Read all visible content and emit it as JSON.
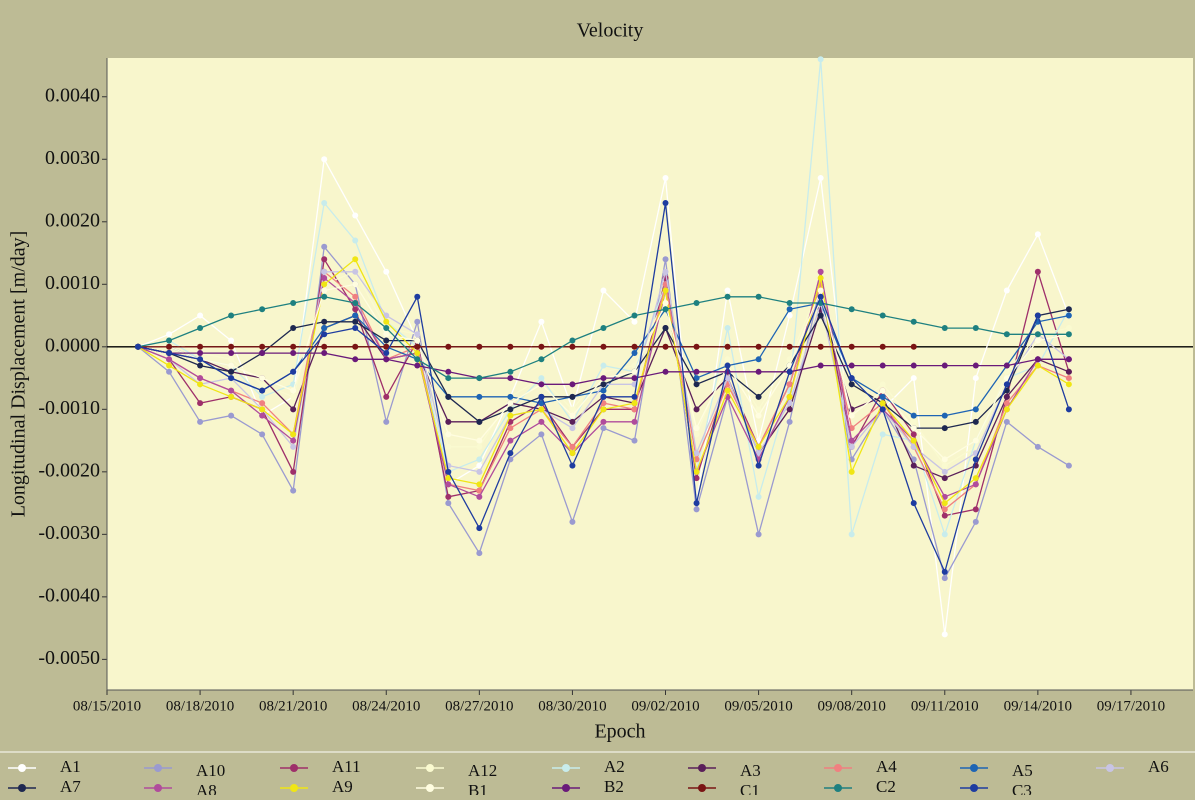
{
  "chart_data": {
    "type": "line",
    "title": "Velocity",
    "xlabel": "Epoch",
    "ylabel": "Longitudinal Displacement [m/day]",
    "x": [
      "08/16/2010",
      "08/17/2010",
      "08/18/2010",
      "08/19/2010",
      "08/20/2010",
      "08/21/2010",
      "08/22/2010",
      "08/23/2010",
      "08/24/2010",
      "08/25/2010",
      "08/26/2010",
      "08/27/2010",
      "08/28/2010",
      "08/29/2010",
      "08/30/2010",
      "08/31/2010",
      "09/01/2010",
      "09/02/2010",
      "09/03/2010",
      "09/04/2010",
      "09/05/2010",
      "09/06/2010",
      "09/07/2010",
      "09/08/2010",
      "09/09/2010",
      "09/10/2010",
      "09/11/2010",
      "09/12/2010",
      "09/13/2010",
      "09/14/2010",
      "09/15/2010"
    ],
    "xlim": [
      "08/15/2010",
      "09/19/2010"
    ],
    "xticks": [
      "08/15/2010",
      "08/18/2010",
      "08/21/2010",
      "08/24/2010",
      "08/27/2010",
      "08/30/2010",
      "09/02/2010",
      "09/05/2010",
      "09/08/2010",
      "09/11/2010",
      "09/14/2010",
      "09/17/2010"
    ],
    "ylim": [
      -0.00549,
      0.00462
    ],
    "yticks": [
      {
        "value": -0.005,
        "label": "-0.0050"
      },
      {
        "value": -0.004,
        "label": "-0.0040"
      },
      {
        "value": -0.003,
        "label": "-0.0030"
      },
      {
        "value": -0.002,
        "label": "-0.0020"
      },
      {
        "value": -0.001,
        "label": "-0.0010"
      },
      {
        "value": 0,
        "label": "0.0000"
      },
      {
        "value": 0.001,
        "label": "0.0010"
      },
      {
        "value": 0.002,
        "label": "0.0020"
      },
      {
        "value": 0.003,
        "label": "0.0030"
      },
      {
        "value": 0.004,
        "label": "0.0040"
      }
    ],
    "zero_line": true,
    "series": [
      {
        "name": "A1",
        "color": "#ffffff",
        "values": [
          0,
          0.0002,
          0.0005,
          0.0001,
          -0.0011,
          -0.0008,
          0.003,
          0.0021,
          0.0012,
          0.0001,
          -0.0022,
          -0.0019,
          -0.0008,
          0.0004,
          -0.001,
          0.0009,
          0.0004,
          0.0027,
          -0.0025,
          0.0009,
          -0.0015,
          0.0005,
          0.0027,
          -0.0016,
          -0.001,
          -0.0005,
          -0.0046,
          -0.0005,
          0.0009,
          0.0018,
          0.0005
        ]
      },
      {
        "name": "A10",
        "color": "#9a9ad0",
        "values": [
          0,
          -0.0004,
          -0.0012,
          -0.0011,
          -0.0014,
          -0.0023,
          0.0016,
          0.001,
          -0.0012,
          0.0004,
          -0.0025,
          -0.0033,
          -0.0018,
          -0.0014,
          -0.0028,
          -0.0013,
          -0.0015,
          0.0014,
          -0.0026,
          -0.0008,
          -0.003,
          -0.0012,
          0.001,
          -0.0018,
          -0.001,
          -0.0018,
          -0.0037,
          -0.0028,
          -0.0012,
          -0.0016,
          -0.0019
        ]
      },
      {
        "name": "A11",
        "color": "#9e2f6a",
        "values": [
          0,
          -0.0002,
          -0.0009,
          -0.0008,
          -0.001,
          -0.002,
          0.0014,
          0.0006,
          -0.0008,
          0.0001,
          -0.0024,
          -0.0023,
          -0.0012,
          -0.0009,
          -0.0016,
          -0.001,
          -0.001,
          0.0011,
          -0.0021,
          -0.0005,
          -0.0016,
          -0.0006,
          0.001,
          -0.0016,
          -0.0007,
          -0.0014,
          -0.0027,
          -0.0026,
          -0.0008,
          0.0012,
          -0.0004
        ]
      },
      {
        "name": "A12",
        "color": "#fafad0",
        "values": [
          0,
          0.0001,
          -0.0001,
          -0.0002,
          -0.0006,
          -0.0008,
          0.001,
          0.0012,
          0.0003,
          0.0002,
          -0.0016,
          -0.0016,
          -0.0008,
          -0.0005,
          -0.001,
          -0.0004,
          -0.0003,
          0.0008,
          -0.0014,
          -0.0002,
          -0.001,
          -0.0002,
          0.001,
          -0.001,
          -0.0006,
          -0.0012,
          -0.0019,
          -0.0016,
          -0.0004,
          0.0002,
          0.0003
        ]
      },
      {
        "name": "A2",
        "color": "#c8ecec",
        "values": [
          0,
          0.0001,
          -0.0002,
          -0.0003,
          -0.0008,
          -0.0006,
          0.0023,
          0.0017,
          0.0004,
          0.0,
          -0.002,
          -0.0018,
          -0.001,
          -0.0005,
          -0.0012,
          -0.0003,
          -0.0004,
          0.001,
          -0.002,
          0.0003,
          -0.0024,
          -0.0007,
          0.0046,
          -0.003,
          -0.0014,
          -0.0015,
          -0.003,
          -0.0015,
          -0.0005,
          -0.0003,
          0.0006
        ]
      },
      {
        "name": "A3",
        "color": "#5a1f5a",
        "values": [
          0,
          -0.0001,
          -0.0002,
          -0.0004,
          -0.0005,
          -0.001,
          0.0003,
          0.0005,
          -0.0002,
          -0.0001,
          -0.0012,
          -0.0012,
          -0.0009,
          -0.001,
          -0.0012,
          -0.0008,
          -0.0009,
          0.0003,
          -0.001,
          -0.0005,
          -0.0017,
          -0.001,
          0.0006,
          -0.001,
          -0.0008,
          -0.0019,
          -0.0021,
          -0.0019,
          -0.0008,
          -0.0002,
          -0.0004
        ]
      },
      {
        "name": "A4",
        "color": "#f08080",
        "values": [
          0,
          -0.0002,
          -0.0005,
          -0.0007,
          -0.0009,
          -0.0014,
          0.0012,
          0.0008,
          -0.0002,
          0.0,
          -0.0022,
          -0.0023,
          -0.0013,
          -0.001,
          -0.0016,
          -0.0009,
          -0.001,
          0.001,
          -0.0018,
          -0.0006,
          -0.0016,
          -0.0006,
          0.001,
          -0.0013,
          -0.0009,
          -0.0016,
          -0.0026,
          -0.0022,
          -0.0009,
          -0.0003,
          -0.0005
        ]
      },
      {
        "name": "A5",
        "color": "#1e64b4",
        "values": [
          0,
          0.0,
          -0.0002,
          -0.0005,
          -0.0007,
          -0.0004,
          0.0003,
          0.0005,
          0.0,
          -0.0002,
          -0.0008,
          -0.0008,
          -0.0008,
          -0.0009,
          -0.0008,
          -0.0007,
          -0.0001,
          0.0006,
          -0.0005,
          -0.0003,
          -0.0002,
          0.0006,
          0.0007,
          -0.0005,
          -0.0008,
          -0.0011,
          -0.0011,
          -0.001,
          -0.0003,
          0.0004,
          0.0005
        ]
      },
      {
        "name": "A6",
        "color": "#c8c4e4",
        "values": [
          0,
          -0.0002,
          -0.0006,
          -0.0005,
          -0.001,
          -0.0016,
          0.0012,
          0.0012,
          0.0005,
          0.0002,
          -0.0019,
          -0.002,
          -0.0011,
          -0.001,
          -0.0013,
          -0.0006,
          -0.0006,
          0.0012,
          -0.0017,
          -0.0005,
          -0.0017,
          -0.0009,
          0.0007,
          -0.0016,
          -0.001,
          -0.0016,
          -0.002,
          -0.0017,
          -0.0006,
          0.0002,
          -0.0002
        ]
      },
      {
        "name": "A7",
        "color": "#1e2850",
        "values": [
          0,
          -0.0001,
          -0.0003,
          -0.0004,
          -0.0001,
          0.0003,
          0.0004,
          0.0004,
          0.0001,
          0.0001,
          -0.0008,
          -0.0012,
          -0.001,
          -0.0008,
          -0.0008,
          -0.0006,
          -0.0004,
          0.0003,
          -0.0006,
          -0.0004,
          -0.0008,
          -0.0003,
          0.0005,
          -0.0006,
          -0.0009,
          -0.0013,
          -0.0013,
          -0.0012,
          -0.0007,
          0.0005,
          0.0006
        ]
      },
      {
        "name": "A8",
        "color": "#b04c9c",
        "values": [
          0,
          -0.0002,
          -0.0005,
          -0.0007,
          -0.0011,
          -0.0015,
          0.0011,
          0.0007,
          -0.0002,
          -0.0001,
          -0.0022,
          -0.0024,
          -0.0015,
          -0.0012,
          -0.0017,
          -0.0012,
          -0.0012,
          0.0009,
          -0.002,
          -0.0008,
          -0.0018,
          -0.0008,
          0.0012,
          -0.0015,
          -0.001,
          -0.0015,
          -0.0024,
          -0.0022,
          -0.001,
          -0.0002,
          -0.0002
        ]
      },
      {
        "name": "A9",
        "color": "#f0e614",
        "values": [
          0,
          -0.0003,
          -0.0006,
          -0.0008,
          -0.001,
          -0.0014,
          0.001,
          0.0014,
          0.0004,
          -0.0001,
          -0.0021,
          -0.0022,
          -0.0011,
          -0.001,
          -0.0017,
          -0.001,
          -0.0009,
          0.0009,
          -0.002,
          -0.0007,
          -0.0016,
          -0.0008,
          0.0011,
          -0.002,
          -0.0009,
          -0.0015,
          -0.0025,
          -0.0021,
          -0.001,
          -0.0003,
          -0.0006
        ]
      },
      {
        "name": "B1",
        "color": "#fffde0",
        "values": [
          0,
          0.0,
          -0.0002,
          -0.0003,
          -0.0005,
          -0.0007,
          0.0009,
          0.001,
          0.0002,
          0.0001,
          -0.0014,
          -0.0015,
          -0.0009,
          -0.0006,
          -0.0011,
          -0.0005,
          -0.0004,
          0.0007,
          -0.0013,
          -0.0003,
          -0.0011,
          -0.0003,
          0.0009,
          -0.0011,
          -0.0007,
          -0.0013,
          -0.0018,
          -0.0015,
          -0.0005,
          0.0001,
          0.0002
        ]
      },
      {
        "name": "B2",
        "color": "#6a1a7a",
        "values": [
          0,
          -0.0001,
          -0.0001,
          -0.0001,
          -0.0001,
          -0.0001,
          -0.0001,
          -0.0002,
          -0.0002,
          -0.0003,
          -0.0004,
          -0.0005,
          -0.0005,
          -0.0006,
          -0.0006,
          -0.0005,
          -0.0005,
          -0.0004,
          -0.0004,
          -0.0004,
          -0.0004,
          -0.0004,
          -0.0003,
          -0.0003,
          -0.0003,
          -0.0003,
          -0.0003,
          -0.0003,
          -0.0003,
          -0.0002,
          -0.0002
        ]
      },
      {
        "name": "C1",
        "color": "#7a1414",
        "values": [
          0,
          0,
          0,
          0,
          0,
          0,
          0,
          0,
          0,
          0,
          0,
          0,
          0,
          0,
          0,
          0,
          0,
          0,
          0,
          0,
          0,
          0,
          0,
          0,
          0,
          0,
          null,
          null,
          null,
          null,
          null
        ]
      },
      {
        "name": "C2",
        "color": "#1e8080",
        "values": [
          0,
          0.0001,
          0.0003,
          0.0005,
          0.0006,
          0.0007,
          0.0008,
          0.0007,
          0.0003,
          -0.0002,
          -0.0005,
          -0.0005,
          -0.0004,
          -0.0002,
          0.0001,
          0.0003,
          0.0005,
          0.0006,
          0.0007,
          0.0008,
          0.0008,
          0.0007,
          0.0007,
          0.0006,
          0.0005,
          0.0004,
          0.0003,
          0.0003,
          0.0002,
          0.0002,
          0.0002
        ]
      },
      {
        "name": "C3",
        "color": "#1e3ca0",
        "values": [
          0,
          -0.0001,
          -0.0002,
          -0.0005,
          -0.0007,
          -0.0004,
          0.0002,
          0.0003,
          -0.0001,
          0.0008,
          -0.002,
          -0.0029,
          -0.0017,
          -0.0008,
          -0.0019,
          -0.0008,
          -0.0008,
          0.0023,
          -0.0025,
          -0.0003,
          -0.0019,
          -0.0004,
          0.0008,
          -0.0005,
          -0.001,
          -0.0025,
          -0.0036,
          -0.0018,
          -0.0006,
          0.0005,
          -0.001
        ]
      }
    ]
  }
}
